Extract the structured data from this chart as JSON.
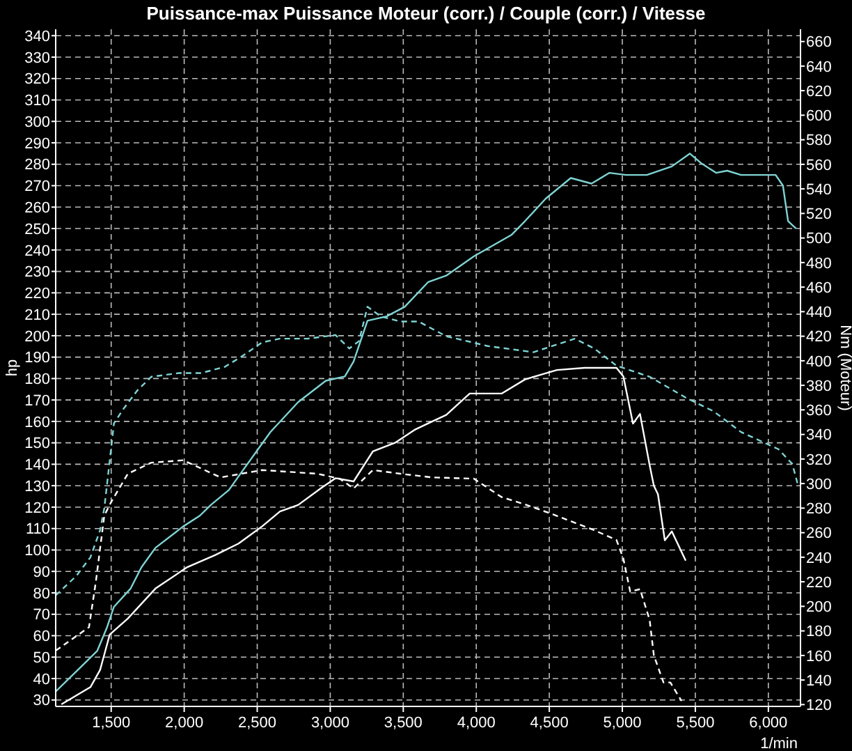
{
  "chart_data": {
    "type": "line",
    "title": "Puissance-max Puissance Moteur (corr.) / Couple (corr.) / Vitesse",
    "xlabel": "1/min",
    "ylabel": "hp",
    "y2label": "Nm (Moteur)",
    "grid": true,
    "xlim": [
      1120,
      6220
    ],
    "xticks": [
      {
        "value": 1500,
        "label": "1,500"
      },
      {
        "value": 2000,
        "label": "2,000"
      },
      {
        "value": 2500,
        "label": "2,500"
      },
      {
        "value": 3000,
        "label": "3,000"
      },
      {
        "value": 3500,
        "label": "3,500"
      },
      {
        "value": 4000,
        "label": "4,000"
      },
      {
        "value": 4500,
        "label": "4,500"
      },
      {
        "value": 5000,
        "label": "5,000"
      },
      {
        "value": 5500,
        "label": "5,500"
      },
      {
        "value": 6000,
        "label": "6,000"
      }
    ],
    "ylim": [
      27,
      343
    ],
    "yticks": [
      30,
      40,
      50,
      60,
      70,
      80,
      90,
      100,
      110,
      120,
      130,
      140,
      150,
      160,
      170,
      180,
      190,
      200,
      210,
      220,
      230,
      240,
      250,
      260,
      270,
      280,
      290,
      300,
      310,
      320,
      330,
      340
    ],
    "y2lim": [
      118.5,
      670
    ],
    "y2ticks": [
      120,
      140,
      160,
      180,
      200,
      220,
      240,
      260,
      280,
      300,
      320,
      340,
      360,
      380,
      400,
      420,
      440,
      460,
      480,
      500,
      520,
      540,
      560,
      580,
      600,
      620,
      640,
      660
    ],
    "series": [
      {
        "color": "#7fd4d4",
        "line_style": "solid",
        "x": [
          1121,
          1301,
          1405,
          1472,
          1519,
          1633,
          1708,
          1803,
          1993,
          2107,
          2182,
          2306,
          2400,
          2590,
          2780,
          2970,
          3100,
          3160,
          3255,
          3386,
          3510,
          3670,
          3794,
          3983,
          4240,
          4334,
          4476,
          4647,
          4789,
          4912,
          5026,
          5168,
          5339,
          5462,
          5538,
          5642,
          5718,
          5813,
          5936,
          6050,
          6100,
          6135,
          6190
        ],
        "values": [
          34,
          46,
          53,
          64,
          73.5,
          82,
          92,
          101,
          111,
          116,
          121,
          128,
          137,
          155,
          169,
          179,
          181,
          188,
          207,
          209,
          213.5,
          225,
          228,
          237,
          247,
          253.5,
          264,
          273.6,
          271,
          276,
          275,
          275,
          279,
          285,
          280.6,
          276,
          277,
          275,
          275,
          275,
          270,
          253.5,
          250
        ]
      },
      {
        "color": "#7fd4d4",
        "line_style": "dashed",
        "axis": "y2",
        "x": [
          1121,
          1263,
          1358,
          1424,
          1453,
          1519,
          1585,
          1680,
          1775,
          1964,
          2116,
          2277,
          2400,
          2533,
          2656,
          2846,
          3036,
          3130,
          3197,
          3255,
          3348,
          3481,
          3604,
          3794,
          4078,
          4391,
          4675,
          4808,
          4960,
          5187,
          5434,
          5623,
          5813,
          6069,
          6164,
          6200
        ],
        "values": [
          209,
          225,
          240,
          262,
          280,
          349,
          361,
          376,
          387,
          390,
          390,
          395,
          404,
          415,
          418,
          418,
          421,
          410,
          416,
          444,
          436,
          432,
          432,
          420,
          412,
          407,
          418,
          410,
          396,
          387,
          370,
          359,
          342,
          328,
          316,
          300
        ]
      },
      {
        "color": "#ffffff",
        "line_style": "solid",
        "x": [
          1159,
          1358,
          1424,
          1490,
          1614,
          1803,
          2021,
          2211,
          2372,
          2533,
          2656,
          2780,
          2940,
          3036,
          3160,
          3292,
          3443,
          3576,
          3699,
          3794,
          3955,
          4173,
          4334,
          4552,
          4742,
          4960,
          5007,
          5073,
          5121,
          5187,
          5216,
          5244,
          5291,
          5339,
          5434
        ],
        "values": [
          28,
          36,
          44,
          60.5,
          68,
          82,
          92,
          97.6,
          103,
          111,
          118,
          121,
          129,
          133.5,
          132,
          146,
          150,
          156,
          160,
          163,
          173,
          173,
          179.6,
          184,
          185,
          185,
          181,
          159,
          163.5,
          139.6,
          130,
          126,
          104.5,
          108.7,
          95
        ]
      },
      {
        "color": "#ffffff",
        "line_style": "dashed",
        "axis": "y2",
        "x": [
          1121,
          1348,
          1395,
          1453,
          1500,
          1614,
          1775,
          1993,
          2249,
          2533,
          2912,
          3064,
          3160,
          3292,
          3481,
          3699,
          3983,
          4173,
          4334,
          4523,
          4808,
          4960,
          5007,
          5054,
          5121,
          5187,
          5216,
          5282,
          5329,
          5405
        ],
        "values": [
          164,
          183,
          220,
          274,
          285,
          308,
          317,
          319,
          305,
          311,
          308,
          304,
          296,
          311,
          308,
          305,
          304,
          289,
          283,
          275,
          262,
          254,
          239,
          212,
          214,
          189,
          160,
          138,
          138,
          123
        ]
      }
    ]
  }
}
